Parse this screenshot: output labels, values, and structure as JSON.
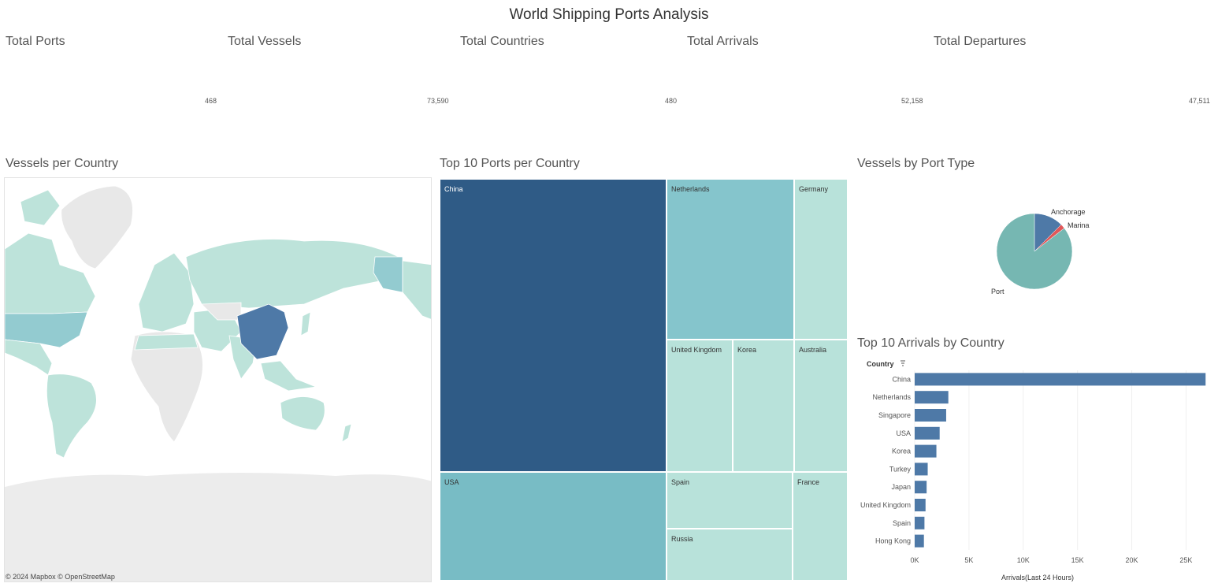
{
  "dashboard": {
    "title": "World Shipping Ports Analysis"
  },
  "kpis": [
    {
      "label": "Total Ports",
      "value": "468"
    },
    {
      "label": "Total Vessels",
      "value": "73,590"
    },
    {
      "label": "Total Countries",
      "value": "480"
    },
    {
      "label": "Total Arrivals",
      "value": "52,158"
    },
    {
      "label": "Total Departures",
      "value": "47,511"
    }
  ],
  "map": {
    "title": "Vessels per Country",
    "attribution": "© 2024 Mapbox  © OpenStreetMap",
    "colors": {
      "land_nodata": "#e8e8e8",
      "low": "#bde3da",
      "mid": "#93cbd0",
      "high": "#4e79a7"
    }
  },
  "treemap": {
    "title": "Top 10 Ports per Country",
    "cells": [
      {
        "label": "China",
        "color": "#2f5b86",
        "dark": true
      },
      {
        "label": "Netherlands",
        "color": "#85c5cc",
        "dark": false
      },
      {
        "label": "Germany",
        "color": "#b8e2da",
        "dark": false
      },
      {
        "label": "United Kingdom",
        "color": "#b8e2da",
        "dark": false
      },
      {
        "label": "Korea",
        "color": "#b8e2da",
        "dark": false
      },
      {
        "label": "Australia",
        "color": "#b8e2da",
        "dark": false
      },
      {
        "label": "USA",
        "color": "#78bcc5",
        "dark": false
      },
      {
        "label": "Spain",
        "color": "#b8e2da",
        "dark": false
      },
      {
        "label": "France",
        "color": "#b8e2da",
        "dark": false
      },
      {
        "label": "Russia",
        "color": "#b8e2da",
        "dark": false
      }
    ]
  },
  "pie": {
    "title": "Vessels by Port Type",
    "slices": [
      {
        "label": "Anchorage",
        "fraction": 0.125,
        "color": "#4e79a7"
      },
      {
        "label": "Marina",
        "fraction": 0.02,
        "color": "#e15759"
      },
      {
        "label": "Port",
        "fraction": 0.855,
        "color": "#76b7b2"
      }
    ]
  },
  "chart_data": {
    "type": "bar",
    "title": "Top 10 Arrivals by Country",
    "dimension_label": "Country",
    "xlabel": "Arrivals(Last 24 Hours)",
    "categories": [
      "China",
      "Netherlands",
      "Singapore",
      "USA",
      "Korea",
      "Turkey",
      "Japan",
      "United Kingdom",
      "Spain",
      "Hong Kong"
    ],
    "values": [
      26800,
      3100,
      2900,
      2300,
      2000,
      1200,
      1100,
      1000,
      900,
      850
    ],
    "xlim": [
      0,
      27000
    ],
    "ticks": [
      0,
      5000,
      10000,
      15000,
      20000,
      25000
    ],
    "tick_labels": [
      "0K",
      "5K",
      "10K",
      "15K",
      "20K",
      "25K"
    ],
    "bar_color": "#4e79a7",
    "grid": true
  }
}
